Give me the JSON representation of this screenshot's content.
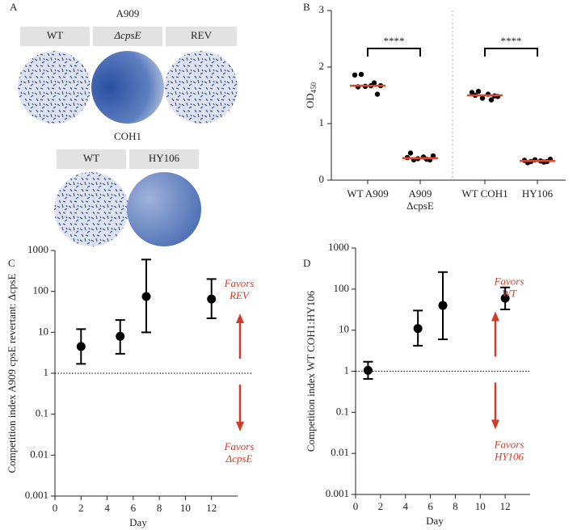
{
  "panel_a": {
    "label": "A",
    "groups": [
      {
        "title": "A909",
        "strains": [
          "WT",
          "ΔcpsE",
          "REV"
        ]
      },
      {
        "title": "COH1",
        "strains": [
          "WT",
          "HY106"
        ]
      }
    ]
  },
  "chart_data": [
    {
      "type": "strip",
      "panel_label": "B",
      "y_label": "OD",
      "y_label_subscript": "450",
      "categories": [
        "WT A909",
        "A909\nΔcpsE",
        "WT COH1",
        "HY106"
      ],
      "values": [
        [
          1.86,
          1.87,
          1.72,
          1.67,
          1.65,
          1.66,
          1.67,
          1.52
        ],
        [
          0.4,
          0.36,
          0.37,
          0.43,
          0.48,
          0.38,
          0.41,
          0.36
        ],
        [
          1.55,
          1.57,
          1.42,
          1.48,
          1.5,
          1.45,
          1.52,
          1.49
        ],
        [
          0.35,
          0.33,
          0.32,
          0.37,
          0.31,
          0.36,
          0.34,
          0.33
        ]
      ],
      "medians": [
        1.67,
        0.39,
        1.5,
        0.34
      ],
      "color": "#000000",
      "median_color": "#e0452e",
      "significance_labels": [
        "****",
        "****"
      ],
      "divider": true,
      "ylim": [
        0,
        3
      ],
      "yticks": [
        0,
        1,
        2,
        3
      ]
    },
    {
      "type": "scatter",
      "panel_label": "C",
      "x_label": "Day",
      "y_label": "Competition index A909 cpsE revertant: ΔcpsE",
      "x": [
        2,
        5,
        7,
        12
      ],
      "values": [
        4.5,
        8,
        75,
        65
      ],
      "lower": [
        1.7,
        3,
        10,
        22
      ],
      "upper": [
        12,
        20,
        600,
        200
      ],
      "color": "#000000",
      "log_y": true,
      "reference_line": 1,
      "annotations": [
        "Favors\nREV",
        "Favors\nΔcpsE"
      ],
      "annotation_color": "#d13b2a",
      "xlim": [
        0,
        14
      ],
      "xticks": [
        0,
        2,
        4,
        6,
        8,
        10,
        12
      ],
      "ylim": [
        0.001,
        1000
      ],
      "yticks": [
        0.001,
        0.01,
        0.1,
        1,
        10,
        100,
        1000
      ]
    },
    {
      "type": "scatter",
      "panel_label": "D",
      "x_label": "Day",
      "y_label": "Competition index WT COH1:HY106",
      "x": [
        1,
        5,
        7,
        12
      ],
      "values": [
        1.05,
        11,
        40,
        60
      ],
      "lower": [
        0.65,
        4.2,
        6,
        32
      ],
      "upper": [
        1.7,
        30,
        260,
        110
      ],
      "color": "#000000",
      "log_y": true,
      "reference_line": 1,
      "annotations": [
        "Favors\nWT",
        "Favors\nHY106"
      ],
      "annotation_color": "#d13b2a",
      "xlim": [
        0,
        14
      ],
      "xticks": [
        0,
        2,
        4,
        6,
        8,
        10,
        12
      ],
      "ylim": [
        0.001,
        1000
      ],
      "yticks": [
        0.001,
        0.01,
        0.1,
        1,
        10,
        100,
        1000
      ]
    }
  ]
}
